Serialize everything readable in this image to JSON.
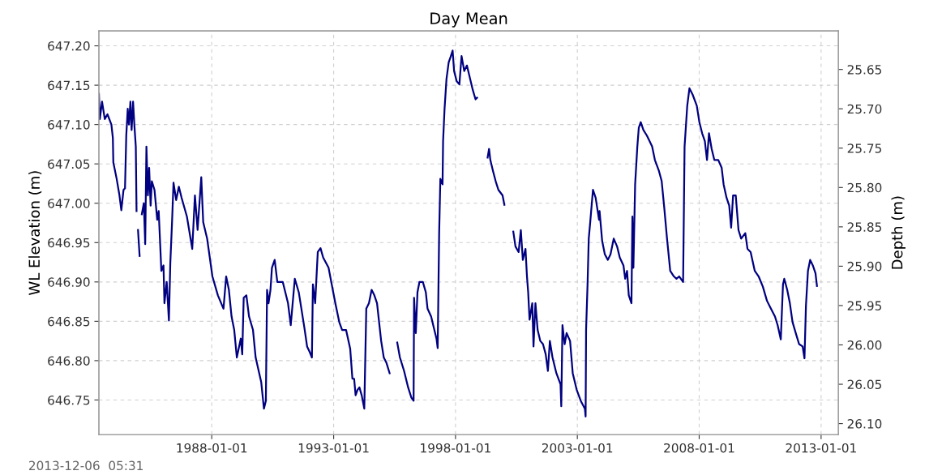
{
  "chart_data": {
    "type": "line",
    "title": "Day Mean",
    "ylabel": "WL Elevation (m)",
    "y2label": "Depth (m)",
    "annotations": [
      "2013-12-06  05:31"
    ],
    "grid": true,
    "marker": "none",
    "line_style": "solid",
    "xlim": [
      "1983-05-16",
      "2013-09-17"
    ],
    "xticks": [
      "1988-01-01",
      "1993-01-01",
      "1998-01-01",
      "2003-01-01",
      "2008-01-01",
      "2013-01-01"
    ],
    "ylim": [
      646.706,
      647.219
    ],
    "yticks": [
      {
        "value": 646.75,
        "label": "646.75"
      },
      {
        "value": 646.8,
        "label": "646.80"
      },
      {
        "value": 646.85,
        "label": "646.85"
      },
      {
        "value": 646.9,
        "label": "646.90"
      },
      {
        "value": 646.95,
        "label": "646.95"
      },
      {
        "value": 647.0,
        "label": "647.00"
      },
      {
        "value": 647.05,
        "label": "647.05"
      },
      {
        "value": 647.1,
        "label": "647.10"
      },
      {
        "value": 647.15,
        "label": "647.15"
      },
      {
        "value": 647.2,
        "label": "647.20"
      }
    ],
    "y2lim": [
      26.114,
      25.601
    ],
    "y2ticks": [
      {
        "value": 25.65,
        "label": "25.65"
      },
      {
        "value": 25.7,
        "label": "25.70"
      },
      {
        "value": 25.75,
        "label": "25.75"
      },
      {
        "value": 25.8,
        "label": "25.80"
      },
      {
        "value": 25.85,
        "label": "25.85"
      },
      {
        "value": 25.9,
        "label": "25.90"
      },
      {
        "value": 25.95,
        "label": "25.95"
      },
      {
        "value": 26.0,
        "label": "26.00"
      },
      {
        "value": 26.05,
        "label": "26.05"
      },
      {
        "value": 26.1,
        "label": "26.10"
      }
    ],
    "series": [
      {
        "color": "#000080",
        "x": [
          "1983-05-16",
          "1983-05-30",
          "1983-07-02",
          "1983-08-12",
          "1983-09-21",
          "1983-11-19",
          "1983-12-11",
          "1983-12-18",
          "1984-02-06",
          "1984-03-19",
          "1984-04-16",
          "1984-05-19",
          "1984-06-10",
          "1984-06-29",
          "1984-07-21",
          "1984-08-08",
          "1984-08-30",
          "1984-09-17",
          "1984-10-09",
          "1984-10-28",
          "1984-11-19",
          "1984-11-30",
          "1984-12-11",
          "1984-12-22",
          "1985-01-15",
          "1985-01-26",
          "1985-02-17",
          "1985-03-19",
          "1985-04-09",
          "1985-04-27",
          "1985-05-19",
          "1985-06-07",
          "1985-06-29",
          "1985-07-17",
          "1985-08-26",
          "1985-10-06",
          "1985-10-28",
          "1985-12-07",
          "1986-01-08",
          "1986-01-22",
          "1986-02-25",
          "1986-03-30",
          "1986-04-20",
          "1986-05-16",
          "1986-06-07",
          "1986-07-17",
          "1986-08-26",
          "1986-10-06",
          "1986-12-25",
          "1987-03-15",
          "1987-04-24",
          "1987-06-03",
          "1987-07-28",
          "1987-08-26",
          "1987-10-24",
          "1988-01-11",
          "1988-04-02",
          "1988-06-25",
          "1988-08-04",
          "1988-09-14",
          "1988-10-24",
          "1988-12-03",
          "1989-01-11",
          "1989-03-11",
          "1989-04-02",
          "1989-04-24",
          "1989-06-03",
          "1989-07-13",
          "1989-09-10",
          "1989-10-20",
          "1990-01-11",
          "1990-02-21",
          "1990-03-22",
          "1990-04-09",
          "1990-05-01",
          "1990-05-30",
          "1990-06-21",
          "1990-08-01",
          "1990-09-10",
          "1990-11-30",
          "1991-02-17",
          "1991-03-30",
          "1991-05-30",
          "1991-07-28",
          "1991-10-20",
          "1991-11-30",
          "1992-01-08",
          "1992-02-10",
          "1992-02-25",
          "1992-03-30",
          "1992-05-08",
          "1992-06-18",
          "1992-07-28",
          "1992-10-17",
          "1992-11-26",
          "1993-01-26",
          "1993-03-26",
          "1993-05-08",
          "1993-07-06",
          "1993-09-06",
          "1993-10-09",
          "1993-11-04",
          "1993-11-26",
          "1993-12-25",
          "1994-01-22",
          "1994-02-25",
          "1994-04-05",
          "1994-05-05",
          "1994-06-14",
          "1994-07-24",
          "1994-09-03",
          "1994-10-13",
          "1994-12-14",
          "1995-01-22",
          "1995-03-04",
          "1995-04-20",
          "1995-06-14",
          "1995-08-12",
          "1995-09-21",
          "1995-11-22",
          "1996-01-22",
          "1996-03-11",
          "1996-04-13",
          "1996-04-20",
          "1996-05-16",
          "1996-06-10",
          "1996-07-10",
          "1996-08-30",
          "1996-10-13",
          "1996-11-08",
          "1997-01-01",
          "1997-02-10",
          "1997-03-22",
          "1997-04-09",
          "1997-05-01",
          "1997-05-19",
          "1997-06-21",
          "1997-06-29",
          "1997-07-21",
          "1997-08-19",
          "1997-09-21",
          "1997-10-20",
          "1997-11-19",
          "1997-12-11",
          "1998-01-19",
          "1998-02-28",
          "1998-04-02",
          "1998-05-12",
          "1998-06-21",
          "1998-08-08",
          "1998-09-17",
          "1998-10-28",
          "1998-11-19",
          "1999-02-06",
          "1999-04-27",
          "1999-05-19",
          "1999-06-07",
          "1999-07-17",
          "1999-08-26",
          "1999-10-06",
          "1999-12-07",
          "2000-01-04",
          "2000-03-15",
          "2000-05-16",
          "2000-06-18",
          "2000-08-04",
          "2000-09-06",
          "2000-10-06",
          "2000-11-15",
          "2000-12-07",
          "2000-12-25",
          "2001-01-15",
          "2001-02-25",
          "2001-03-15",
          "2001-04-13",
          "2001-05-16",
          "2001-06-25",
          "2001-08-04",
          "2001-09-14",
          "2001-10-17",
          "2001-11-15",
          "2001-12-25",
          "2002-02-21",
          "2002-04-24",
          "2002-05-05",
          "2002-05-23",
          "2002-06-25",
          "2002-07-24",
          "2002-09-14",
          "2002-10-24",
          "2002-12-22",
          "2003-02-21",
          "2003-04-24",
          "2003-05-05",
          "2003-05-12",
          "2003-06-03",
          "2003-06-21",
          "2003-07-13",
          "2003-08-23",
          "2003-10-02",
          "2003-11-22",
          "2003-11-30",
          "2004-01-08",
          "2004-02-17",
          "2004-04-02",
          "2004-05-12",
          "2004-06-29",
          "2004-08-19",
          "2004-09-28",
          "2004-11-22",
          "2004-12-18",
          "2005-01-15",
          "2005-02-10",
          "2005-03-22",
          "2005-04-05",
          "2005-04-20",
          "2005-05-16",
          "2005-06-18",
          "2005-07-10",
          "2005-08-08",
          "2005-09-17",
          "2005-11-08",
          "2005-12-18",
          "2006-01-26",
          "2006-03-08",
          "2006-05-08",
          "2006-06-18",
          "2006-07-28",
          "2006-09-06",
          "2006-10-24",
          "2006-12-18",
          "2007-01-26",
          "2007-03-08",
          "2007-05-05",
          "2007-05-27",
          "2007-07-06",
          "2007-08-08",
          "2007-09-25",
          "2007-11-26",
          "2008-01-04",
          "2008-02-14",
          "2008-03-26",
          "2008-04-27",
          "2008-05-27",
          "2008-07-06",
          "2008-08-15",
          "2008-10-13",
          "2008-12-03",
          "2009-01-01",
          "2009-02-14",
          "2009-03-26",
          "2009-04-24",
          "2009-05-23",
          "2009-07-02",
          "2009-08-12",
          "2009-09-21",
          "2009-11-22",
          "2009-12-25",
          "2010-02-10",
          "2010-04-13",
          "2010-06-10",
          "2010-08-12",
          "2010-10-13",
          "2010-12-11",
          "2011-02-10",
          "2011-03-22",
          "2011-05-08",
          "2011-06-10",
          "2011-06-29",
          "2011-08-12",
          "2011-09-21",
          "2011-10-31",
          "2011-12-29",
          "2012-02-06",
          "2012-03-30",
          "2012-04-27",
          "2012-05-19",
          "2012-06-18",
          "2012-07-21",
          "2012-08-30",
          "2012-10-09",
          "2012-10-31"
        ],
        "values": [
          647.139,
          647.107,
          647.129,
          647.107,
          647.113,
          647.1,
          647.083,
          647.052,
          647.031,
          647.01,
          646.991,
          647.017,
          647.019,
          647.086,
          647.12,
          647.1,
          647.129,
          647.093,
          647.129,
          647.1,
          647.072,
          646.99,
          null,
          646.966,
          646.933,
          null,
          646.986,
          647.0,
          646.948,
          647.072,
          647.01,
          647.045,
          646.997,
          647.028,
          647.017,
          646.979,
          646.99,
          646.914,
          646.921,
          646.873,
          646.9,
          646.851,
          646.924,
          646.976,
          647.026,
          647.004,
          647.021,
          647.007,
          646.983,
          646.942,
          647.01,
          646.966,
          647.033,
          646.976,
          646.955,
          646.907,
          646.883,
          646.866,
          646.907,
          646.89,
          646.856,
          646.839,
          646.804,
          646.828,
          646.808,
          646.88,
          646.883,
          646.856,
          646.839,
          646.804,
          646.773,
          646.739,
          646.749,
          646.89,
          646.873,
          646.89,
          646.918,
          646.928,
          646.9,
          646.9,
          646.873,
          646.845,
          646.904,
          646.887,
          646.842,
          646.818,
          646.811,
          646.804,
          646.897,
          646.873,
          646.938,
          646.943,
          646.931,
          646.918,
          646.9,
          646.873,
          646.849,
          646.839,
          646.839,
          646.815,
          646.777,
          646.777,
          646.756,
          646.763,
          646.766,
          646.756,
          646.739,
          646.866,
          646.873,
          646.89,
          646.883,
          646.873,
          646.825,
          646.804,
          646.797,
          646.784,
          null,
          646.823,
          646.804,
          646.787,
          646.766,
          646.753,
          646.749,
          646.88,
          646.835,
          646.887,
          646.9,
          646.9,
          646.887,
          646.866,
          646.856,
          646.842,
          646.828,
          646.816,
          646.962,
          647.031,
          647.024,
          647.079,
          647.12,
          647.158,
          647.179,
          647.186,
          647.194,
          647.168,
          647.155,
          647.151,
          647.187,
          647.168,
          647.175,
          647.158,
          647.144,
          647.132,
          647.134,
          null,
          647.058,
          647.069,
          647.055,
          647.041,
          647.028,
          647.017,
          647.01,
          646.998,
          null,
          646.964,
          646.945,
          646.938,
          646.966,
          646.928,
          646.942,
          646.907,
          646.887,
          646.852,
          646.873,
          646.818,
          646.873,
          646.839,
          646.825,
          646.821,
          646.808,
          646.787,
          646.825,
          646.804,
          646.784,
          646.77,
          646.742,
          646.845,
          646.821,
          646.835,
          646.825,
          646.784,
          646.763,
          646.749,
          646.739,
          646.729,
          646.839,
          646.897,
          646.955,
          646.976,
          647.017,
          647.007,
          646.979,
          646.99,
          646.952,
          646.935,
          646.928,
          646.935,
          646.955,
          646.945,
          646.931,
          646.921,
          646.904,
          646.914,
          646.883,
          646.873,
          646.983,
          646.918,
          647.024,
          647.072,
          647.096,
          647.103,
          647.093,
          647.086,
          647.079,
          647.072,
          647.055,
          647.041,
          647.028,
          646.993,
          646.955,
          646.914,
          646.907,
          646.904,
          646.907,
          646.9,
          647.072,
          647.124,
          647.146,
          647.138,
          647.124,
          647.103,
          647.089,
          647.079,
          647.055,
          647.089,
          647.069,
          647.055,
          647.055,
          647.045,
          647.024,
          647.007,
          646.997,
          646.969,
          647.01,
          647.01,
          646.966,
          646.955,
          646.962,
          646.942,
          646.938,
          646.914,
          646.907,
          646.894,
          646.876,
          646.866,
          646.856,
          646.845,
          646.827,
          646.897,
          646.904,
          646.89,
          646.873,
          646.849,
          646.832,
          646.821,
          646.818,
          646.803,
          646.87,
          646.914,
          646.928,
          646.921,
          646.911,
          646.895
        ]
      }
    ]
  }
}
